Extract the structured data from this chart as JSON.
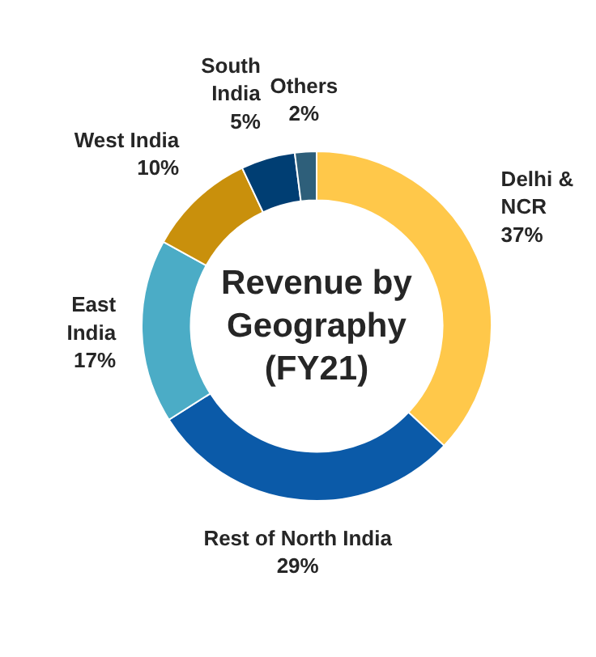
{
  "chart_data": {
    "type": "donut",
    "title": "Revenue by\nGeography\n(FY21)",
    "categories": [
      "Delhi &\nNCR",
      "Rest of North India",
      "East\nIndia",
      "West India",
      "South\nIndia",
      "Others"
    ],
    "values": [
      37,
      29,
      17,
      10,
      5,
      2
    ],
    "value_labels": [
      "37%",
      "29%",
      "17%",
      "10%",
      "5%",
      "2%"
    ],
    "colors": [
      "#ffc84a",
      "#0b5aa8",
      "#4bacc6",
      "#c9900c",
      "#003e73",
      "#2e5f7a"
    ]
  }
}
